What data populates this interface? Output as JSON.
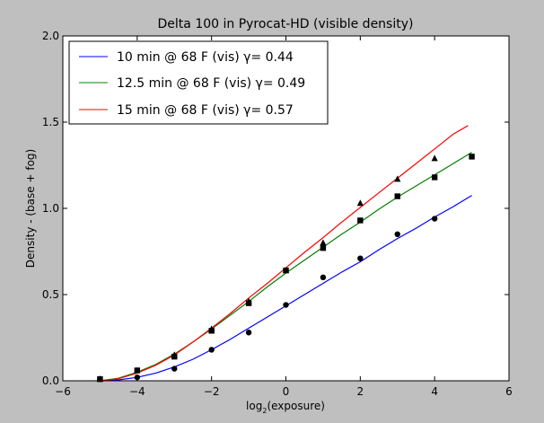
{
  "chart_data": {
    "type": "line",
    "title": "Delta 100 in Pyrocat-HD (visible density)",
    "xlabel": "log",
    "xlabel_subscript": "2",
    "xlabel_suffix": "(exposure)",
    "ylabel": "Density - (base + fog)",
    "xlim": [
      -6,
      6
    ],
    "ylim": [
      0.0,
      2.0
    ],
    "xticks": [
      -6,
      -4,
      -2,
      0,
      2,
      4,
      6
    ],
    "yticks": [
      0.0,
      0.5,
      1.0,
      1.5,
      2.0
    ],
    "xtick_labels": [
      "−6",
      "−4",
      "−2",
      "0",
      "2",
      "4",
      "6"
    ],
    "ytick_labels": [
      "0.0",
      "0.5",
      "1.0",
      "1.5",
      "2.0"
    ],
    "legend_location": "top-left",
    "series": [
      {
        "name": "10 min @ 68 F (vis)",
        "legend_label": "10 min @ 68 F (vis) γ= 0.44",
        "color": "#0000ff",
        "marker": "circle",
        "fit_x": [
          -5,
          -4.5,
          -4,
          -3.5,
          -3,
          -2.5,
          -2,
          -1.5,
          -1,
          -0.5,
          0,
          0.5,
          1,
          1.5,
          2,
          2.5,
          3,
          3.5,
          4,
          4.5,
          5
        ],
        "fit_y": [
          0.0,
          0.005,
          0.02,
          0.045,
          0.08,
          0.125,
          0.18,
          0.24,
          0.305,
          0.37,
          0.435,
          0.5,
          0.565,
          0.63,
          0.69,
          0.76,
          0.825,
          0.885,
          0.95,
          1.01,
          1.075
        ],
        "points_x": [
          -5,
          -4,
          -3,
          -2,
          -1,
          0,
          1,
          2,
          3,
          4
        ],
        "points_y": [
          0.01,
          0.02,
          0.07,
          0.18,
          0.28,
          0.44,
          0.6,
          0.71,
          0.85,
          0.94
        ]
      },
      {
        "name": "12.5 min @ 68 F (vis)",
        "legend_label": "12.5 min @ 68 F (vis) γ= 0.49",
        "color": "#008000",
        "marker": "square",
        "fit_x": [
          -5,
          -4.5,
          -4,
          -3.5,
          -3,
          -2.5,
          -2,
          -1.5,
          -1,
          -0.5,
          0,
          0.5,
          1,
          1.5,
          2,
          2.5,
          3,
          3.5,
          4,
          4.5,
          5
        ],
        "fit_y": [
          0.0,
          0.015,
          0.05,
          0.095,
          0.155,
          0.225,
          0.3,
          0.38,
          0.46,
          0.545,
          0.625,
          0.7,
          0.775,
          0.85,
          0.92,
          0.995,
          1.065,
          1.13,
          1.195,
          1.26,
          1.325
        ],
        "points_x": [
          -5,
          -4,
          -3,
          -2,
          -1,
          0,
          1,
          2,
          3,
          4,
          5
        ],
        "points_y": [
          0.01,
          0.06,
          0.14,
          0.29,
          0.45,
          0.64,
          0.77,
          0.93,
          1.07,
          1.18,
          1.3
        ]
      },
      {
        "name": "15 min @ 68 F (vis)",
        "legend_label": "15 min @ 68 F (vis) γ= 0.57",
        "color": "#ff0000",
        "marker": "triangle",
        "fit_x": [
          -5,
          -4.5,
          -4,
          -3.5,
          -3,
          -2.5,
          -2,
          -1.5,
          -1,
          -0.5,
          0,
          0.5,
          1,
          1.5,
          2,
          2.5,
          3,
          3.5,
          4,
          4.5,
          4.9
        ],
        "fit_y": [
          0.0,
          0.012,
          0.045,
          0.09,
          0.15,
          0.225,
          0.305,
          0.39,
          0.48,
          0.565,
          0.655,
          0.745,
          0.83,
          0.92,
          1.005,
          1.09,
          1.175,
          1.26,
          1.345,
          1.43,
          1.48
        ],
        "points_x": [
          -5,
          -4,
          -3,
          -2,
          -1,
          0,
          1,
          2,
          3,
          4
        ],
        "points_y": [
          0.01,
          0.06,
          0.15,
          0.3,
          0.46,
          0.64,
          0.8,
          1.03,
          1.17,
          1.29
        ]
      }
    ]
  }
}
